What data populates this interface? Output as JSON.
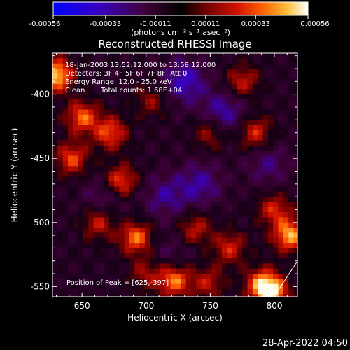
{
  "colorbar": {
    "tick_labels": [
      "-0.00056",
      "-0.00033",
      "-0.00011",
      "0.00011",
      "0.00033",
      "0.00056"
    ],
    "unit_label": "(photons cm⁻² s⁻¹ asec⁻²)",
    "colors": [
      "#0000ff",
      "#4a00b0",
      "#500040",
      "#000000",
      "#600000",
      "#c00000",
      "#ff4000",
      "#ffa000",
      "#ffff80",
      "#ffffff"
    ]
  },
  "title": "Reconstructed RHESSI Image",
  "annotations": {
    "time_range": "18-Jan-2003 13:52:12.000 to 13:58:12.000",
    "detectors": "Detectors: 3F 4F 5F 6F 7F 8F, Att 0",
    "energy": "Energy Range: 12.0 - 25.0 keV",
    "method": "Clean",
    "counts": "Total counts: 1.68E+04",
    "peak": "Position of Peak = [625,-397]"
  },
  "timestamp": "28-Apr-2022 04:50",
  "chart_data": {
    "type": "heatmap",
    "title": "Reconstructed RHESSI Image",
    "xlabel": "Heliocentric X (arcsec)",
    "ylabel": "Heliocentric Y (arcsec)",
    "xlim": [
      627,
      818
    ],
    "ylim": [
      -558,
      -368
    ],
    "x_ticks": [
      650,
      700,
      750,
      800
    ],
    "y_ticks": [
      -400,
      -450,
      -500,
      -550
    ],
    "x_tick_labels": [
      "650",
      "700",
      "750",
      "800"
    ],
    "y_tick_labels": [
      "-400",
      "-450",
      "-500",
      "-550"
    ],
    "color_range": [
      -0.00056,
      0.00056
    ],
    "peak_position": [
      625,
      -397
    ],
    "bright_regions": [
      {
        "x": 630,
        "y": -385,
        "level": 0.00056
      },
      {
        "x": 650,
        "y": -418,
        "level": 0.0004
      },
      {
        "x": 672,
        "y": -430,
        "level": 0.00038
      },
      {
        "x": 642,
        "y": -450,
        "level": 0.00036
      },
      {
        "x": 680,
        "y": -468,
        "level": 0.0004
      },
      {
        "x": 663,
        "y": -500,
        "level": 0.0003
      },
      {
        "x": 692,
        "y": -512,
        "level": 0.00042
      },
      {
        "x": 722,
        "y": -545,
        "level": 0.00045
      },
      {
        "x": 785,
        "y": -430,
        "level": 0.00032
      },
      {
        "x": 750,
        "y": -430,
        "level": 0.00025
      },
      {
        "x": 775,
        "y": -390,
        "level": 0.00028
      },
      {
        "x": 800,
        "y": -490,
        "level": 0.0003
      },
      {
        "x": 812,
        "y": -510,
        "level": 0.0005
      },
      {
        "x": 765,
        "y": -520,
        "level": 0.0003
      },
      {
        "x": 738,
        "y": -505,
        "level": 0.00028
      },
      {
        "x": 790,
        "y": -548,
        "level": 0.0004
      },
      {
        "x": 798,
        "y": -555,
        "level": 0.0005
      },
      {
        "x": 748,
        "y": -547,
        "level": 0.00026
      },
      {
        "x": 704,
        "y": -405,
        "level": 0.0002
      },
      {
        "x": 700,
        "y": -540,
        "level": 0.00022
      }
    ],
    "dark_regions": [
      {
        "x": 730,
        "y": -390,
        "level": -0.0005
      },
      {
        "x": 760,
        "y": -415,
        "level": -0.00045
      },
      {
        "x": 742,
        "y": -470,
        "level": -0.0004
      },
      {
        "x": 715,
        "y": -480,
        "level": -0.00035
      },
      {
        "x": 668,
        "y": -480,
        "level": -0.0003
      },
      {
        "x": 795,
        "y": -455,
        "level": -0.0003
      },
      {
        "x": 720,
        "y": -525,
        "level": -0.0002
      }
    ]
  }
}
